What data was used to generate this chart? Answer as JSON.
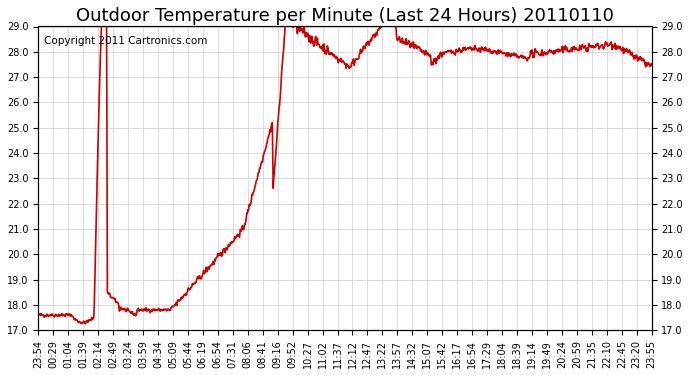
{
  "title": "Outdoor Temperature per Minute (Last 24 Hours) 20110110",
  "copyright_text": "Copyright 2011 Cartronics.com",
  "line_color": "#cc0000",
  "background_color": "#ffffff",
  "grid_color": "#cccccc",
  "ylim": [
    17.0,
    29.0
  ],
  "yticks": [
    17.0,
    18.0,
    19.0,
    20.0,
    21.0,
    22.0,
    23.0,
    24.0,
    25.0,
    26.0,
    27.0,
    28.0,
    29.0
  ],
  "xtick_labels": [
    "23:54",
    "00:29",
    "01:04",
    "01:39",
    "02:14",
    "02:49",
    "03:24",
    "03:59",
    "04:34",
    "05:09",
    "05:44",
    "06:19",
    "06:54",
    "07:31",
    "08:06",
    "08:41",
    "09:16",
    "09:52",
    "10:27",
    "11:02",
    "11:37",
    "12:12",
    "12:47",
    "13:22",
    "13:57",
    "14:32",
    "15:07",
    "15:42",
    "16:17",
    "16:54",
    "17:29",
    "18:04",
    "18:39",
    "19:14",
    "19:49",
    "20:24",
    "20:59",
    "21:35",
    "22:10",
    "22:45",
    "23:20",
    "23:55"
  ],
  "title_fontsize": 13,
  "copyright_fontsize": 7.5,
  "tick_fontsize": 7,
  "line_width": 1.2
}
